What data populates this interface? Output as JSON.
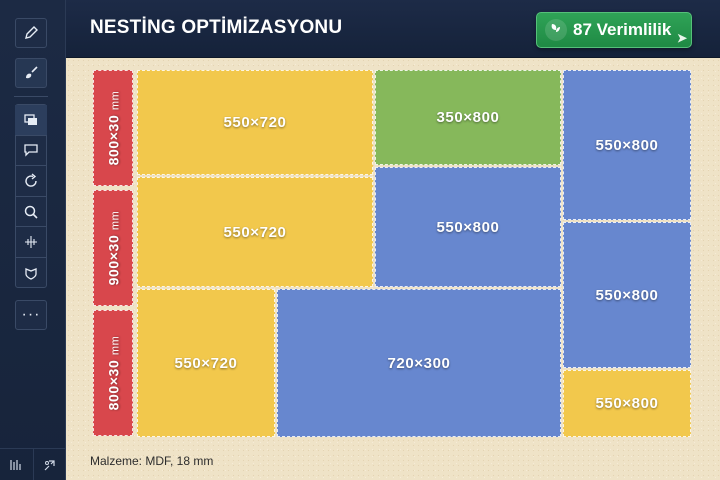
{
  "header": {
    "title": "NESTİNG OPTİMİZASYONU",
    "efficiency_label": "87 Verimlilik"
  },
  "sidebar": {
    "tools": [
      "pencil-icon",
      "brush-icon",
      "layers-icon",
      "comment-icon",
      "rotate-icon",
      "search-icon",
      "crosshair-icon",
      "shield-icon"
    ],
    "more_label": "···"
  },
  "board": {
    "material": "Malzeme: MDF, 18 mm",
    "strip_label_main": "800×30",
    "strip_label_unit": "mm",
    "pieces": {
      "y1": "550×720",
      "y2": "550×720",
      "y3": "550×720",
      "g1": "350×800",
      "b1": "550×800",
      "b2": "720×300",
      "b3": "550×800",
      "b4": "550×800",
      "y4": "550×800",
      "r1a": "800×30",
      "r1b": "mm",
      "r2a": "900×30",
      "r2b": "mm",
      "r3a": "800×30",
      "r3b": "mm"
    }
  },
  "colors": {
    "yellow": "#f2c84c",
    "green": "#86b85b",
    "blue": "#6787cf",
    "red": "#d8474c",
    "accent": "#2fa357"
  }
}
